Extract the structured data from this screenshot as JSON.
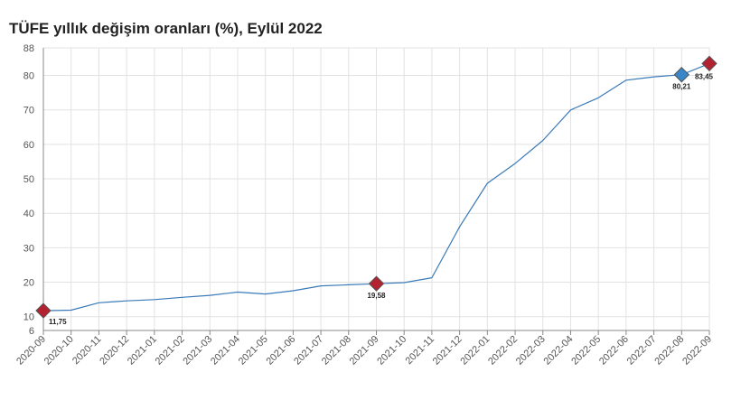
{
  "chart_data": {
    "type": "line",
    "title": "TÜFE yıllık değişim oranları (%), Eylül 2022",
    "xlabel": "",
    "ylabel": "",
    "categories": [
      "2020-09",
      "2020-10",
      "2020-11",
      "2020-12",
      "2021-01",
      "2021-02",
      "2021-03",
      "2021-04",
      "2021-05",
      "2021-06",
      "2021-07",
      "2021-08",
      "2021-09",
      "2021-10",
      "2021-11",
      "2021-12",
      "2022-01",
      "2022-02",
      "2022-03",
      "2022-04",
      "2022-05",
      "2022-06",
      "2022-07",
      "2022-08",
      "2022-09"
    ],
    "series": [
      {
        "values": [
          11.75,
          11.89,
          14.03,
          14.6,
          14.97,
          15.61,
          16.19,
          17.14,
          16.59,
          17.53,
          18.95,
          19.25,
          19.58,
          19.89,
          21.31,
          36.08,
          48.69,
          54.44,
          61.14,
          69.97,
          73.5,
          78.62,
          79.6,
          80.21,
          83.45
        ],
        "color": "#3a7ab8"
      }
    ],
    "ylim": [
      6,
      88
    ],
    "yticks": [
      6,
      10,
      20,
      30,
      40,
      50,
      60,
      70,
      80,
      88
    ],
    "grid": true,
    "markers": [
      {
        "index": 0,
        "label": "11,75",
        "color": "#b22230"
      },
      {
        "index": 12,
        "label": "19,58",
        "color": "#b22230"
      },
      {
        "index": 23,
        "label": "80,21",
        "color": "#3a86c8"
      },
      {
        "index": 24,
        "label": "83,45",
        "color": "#b22230"
      }
    ]
  }
}
